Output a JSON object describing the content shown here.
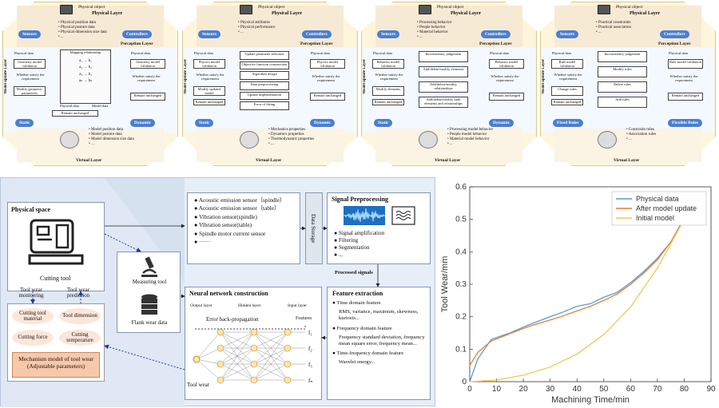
{
  "top_panels": [
    {
      "physical_object": "Physical object",
      "physical_layer": "Physical Layer",
      "physical_bullets": [
        "Physical position data",
        "Physical posture data",
        "Physical dimension size data",
        "..."
      ],
      "sensors": "Sensors",
      "controllers": "Controllers",
      "perception_layer": "Perception Layer",
      "model_update_layer": "Model update Layer",
      "left_col": [
        "Physical data",
        "Geometry model validation",
        "Whether satisfy the requirement",
        "Modify geometric parameters"
      ],
      "middle_label": "Mapping relationship",
      "middle_bottom": [
        "Physical data",
        "Model data"
      ],
      "right_col": [
        "Physical data",
        "Geometry model validation",
        "Whether satisfy the requirement",
        "Remain unchanged"
      ],
      "bottom_box": "Remain unchanged",
      "static": "Static",
      "dynamic": "Dynamic",
      "virtual_bullets": [
        "Model position data",
        "Model posture data",
        "Model dimension size data",
        "..."
      ],
      "virtual_layer": "Virtual Layer"
    },
    {
      "physical_object": "Physical object",
      "physical_layer": "Physical Layer",
      "physical_bullets": [
        "Physical attributes",
        "Physical performance",
        "..."
      ],
      "sensors": "Sensors",
      "controllers": "Controllers",
      "perception_layer": "Perception Layer",
      "model_update_layer": "Model update Layer",
      "left_col": [
        "Physical data",
        "Physics model validation",
        "Whether satisfy the requirement",
        "Modify updated model",
        "Remain unchanged"
      ],
      "center_col": [
        "Update parameter selection",
        "Objective function construction",
        "Algorithm design",
        "Data preprocessing",
        "Update implementation",
        "Error of fitting"
      ],
      "right_col": [
        "Physical data",
        "Physics model validation",
        "Whether satisfy the requirement",
        "Remain unchanged"
      ],
      "static": "Static",
      "dynamic": "Dynamic",
      "virtual_bullets": [
        "Mechanics properties",
        "Dynamics properties",
        "Thermodynamic properties",
        "..."
      ],
      "virtual_layer": "Virtual Layer"
    },
    {
      "physical_object": "Physical object",
      "physical_layer": "Physical Layer",
      "physical_bullets": [
        "Processing behavior",
        "People behavior",
        "Material behavior",
        "..."
      ],
      "sensors": "Sensors",
      "controllers": "Controllers",
      "perception_layer": "Perception Layer",
      "model_update_layer": "Model update Layer",
      "left_col": [
        "Physical data",
        "Behavior model validation",
        "Whether satisfy the requirement",
        "Modify elements",
        "Remain unchanged"
      ],
      "center_col": [
        "Inconsistency judgement",
        "Add/delete/modify elements",
        "Add/delete/modify relationships",
        "Add/delete/modify both elements and relationships"
      ],
      "right_col": [
        "Physical data",
        "Behavior model validation",
        "Whether satisfy the requirement",
        "Remain unchanged"
      ],
      "static": "Static",
      "dynamic": "Dynamic",
      "virtual_bullets": [
        "Processing model behavior",
        "People model behavior",
        "Material model behavior",
        "..."
      ],
      "virtual_layer": "Virtual Layer"
    },
    {
      "physical_object": "Physical object",
      "physical_layer": "Physical Layer",
      "physical_bullets": [
        "Practical constraints",
        "Practical association",
        "..."
      ],
      "sensors": "Sensors",
      "controllers": "Controllers",
      "perception_layer": "Perception Layer",
      "model_update_layer": "Model update Layer",
      "left_col": [
        "Physical data",
        "Rule model validation",
        "Whether satisfy the requirement",
        "Change rules",
        "Remain unchanged"
      ],
      "center_col": [
        "Inconsistency judgement",
        "Modify rules",
        "Delete rules",
        "Add rules"
      ],
      "right_col": [
        "Physical data",
        "Rule model validation",
        "Whether satisfy the requirement",
        "Remain unchanged"
      ],
      "static": "Fixed Rules",
      "dynamic": "Flexible Rules",
      "virtual_bullets": [
        "Constraint rules",
        "Association rules",
        "..."
      ],
      "virtual_layer": "Virtual Layer"
    }
  ],
  "flow": {
    "physical_space": "Physical space",
    "cutting_tool": "Cutting tool",
    "tool_wear_monitoring": "Tool wear monitoring",
    "tool_wear_prediction": "Tool wear prediction",
    "ovals": [
      "Cutting tool material",
      "Tool dimension",
      "Cutting force",
      "Cutting temperature"
    ],
    "mechanism": "Mechanism model of tool wear",
    "mechanism_sub": "(Adjustable parameters)",
    "measuring_tool": "Measuring tool",
    "flank_wear": "Flank wear data",
    "sensors": [
      "Acoustic emission sensor（spindle）",
      "Acoustic emission sensor（table）",
      "Vibration sensor(spindle)",
      "Vibration sensor(table)",
      "Spindle motor current sensor",
      "······"
    ],
    "data_storage": "Data Storage",
    "signal_title": "Signal Preprocessing",
    "signal_items": [
      "Signal amplification",
      "Filtering",
      "Segmentation",
      "..."
    ],
    "processed": "Processed signals",
    "feature_title": "Feature extraction",
    "feature_items": [
      {
        "head": "Time domain feature",
        "body": "RMS, variance, maximum, skewness, kurtosis..."
      },
      {
        "head": "Frequency domain feature",
        "body": "Frequency standard deviation, frequency mean square error, frequency mean..."
      },
      {
        "head": "Time-frequency domain feature",
        "body": "Wavelet energy..."
      }
    ],
    "nn_title": "Neural network construction",
    "nn_layers": [
      "Output layer",
      "Hidden layer",
      "Input layer"
    ],
    "features": "Features",
    "backprop": "Error back-propagation",
    "tool_wear": "Tool wear",
    "f_labels": [
      "f₁",
      "f₂",
      "f₃",
      "fₙ"
    ]
  },
  "chart_data": {
    "type": "line",
    "xlabel": "Machining Time/min",
    "ylabel": "Tool Wear/mm",
    "xlim": [
      0,
      90
    ],
    "ylim": [
      0,
      0.6
    ],
    "xticks": [
      0,
      10,
      20,
      30,
      40,
      50,
      60,
      70,
      80,
      90
    ],
    "yticks": [
      0,
      0.1,
      0.2,
      0.3,
      0.4,
      0.5,
      0.6
    ],
    "grid": false,
    "legend_position": "top-right",
    "series": [
      {
        "name": "Physical data",
        "color": "#5b9bd5",
        "x": [
          0,
          3,
          8,
          15,
          22,
          30,
          35,
          40,
          45,
          50,
          55,
          60,
          65,
          70,
          75,
          80
        ],
        "y": [
          0,
          0.07,
          0.13,
          0.15,
          0.175,
          0.2,
          0.215,
          0.232,
          0.24,
          0.26,
          0.275,
          0.305,
          0.34,
          0.38,
          0.43,
          0.505
        ]
      },
      {
        "name": "After model update",
        "color": "#ed7d31",
        "x": [
          0,
          3,
          8,
          15,
          22,
          30,
          35,
          40,
          45,
          50,
          55,
          60,
          65,
          70,
          75,
          80
        ],
        "y": [
          0.05,
          0.09,
          0.125,
          0.148,
          0.17,
          0.19,
          0.203,
          0.218,
          0.232,
          0.25,
          0.27,
          0.3,
          0.335,
          0.375,
          0.43,
          0.5
        ]
      },
      {
        "name": "Initial model",
        "color": "#f2c94c",
        "x": [
          0,
          10,
          20,
          30,
          40,
          50,
          60,
          70,
          80
        ],
        "y": [
          0.0,
          0.005,
          0.02,
          0.045,
          0.085,
          0.145,
          0.23,
          0.35,
          0.5
        ]
      }
    ]
  }
}
